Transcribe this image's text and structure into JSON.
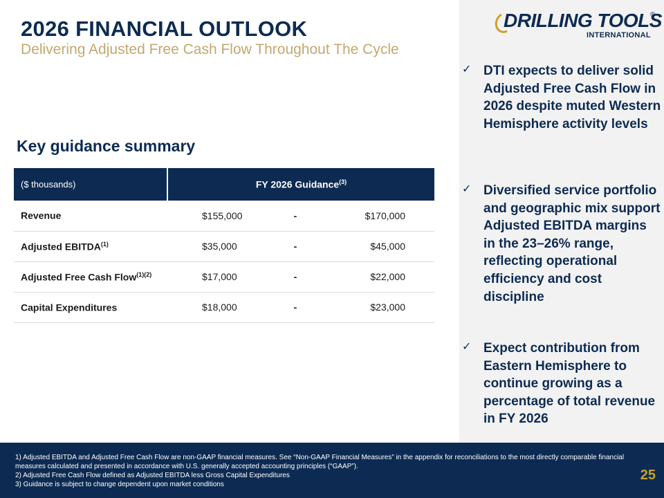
{
  "header": {
    "title": "2026 FINANCIAL OUTLOOK",
    "subtitle": "Delivering Adjusted Free Cash Flow Throughout The Cycle"
  },
  "logo": {
    "main": "DRILLING TOOLS",
    "registered": "®",
    "sub": "INTERNATIONAL"
  },
  "bullets": [
    "DTI expects to deliver solid Adjusted Free Cash Flow in 2026 despite muted Western Hemisphere activity levels",
    "Diversified service portfolio and geographic mix support Adjusted EBITDA margins in the 23–26% range, reflecting operational efficiency and cost discipline",
    "Expect contribution from Eastern Hemisphere to continue growing as a percentage of total revenue in FY 2026"
  ],
  "section_title": "Key guidance summary",
  "table": {
    "unit_header": "($ thousands)",
    "guidance_header": "FY 2026 Guidance",
    "guidance_header_note": "(3)",
    "rows": [
      {
        "label": "Revenue",
        "note": "",
        "low": "$155,000",
        "sep": "-",
        "high": "$170,000"
      },
      {
        "label": "Adjusted EBITDA",
        "note": "(1)",
        "low": "$35,000",
        "sep": "-",
        "high": "$45,000"
      },
      {
        "label": "Adjusted Free Cash Flow",
        "note": "(1)(2)",
        "low": "$17,000",
        "sep": "-",
        "high": "$22,000"
      },
      {
        "label": "Capital Expenditures",
        "note": "",
        "low": "$18,000",
        "sep": "-",
        "high": "$23,000"
      }
    ]
  },
  "footer": {
    "notes": [
      "1) Adjusted EBITDA and Adjusted Free Cash Flow are non-GAAP financial measures. See “Non-GAAP Financial Measures” in the appendix for reconciliations to the most directly comparable financial measures calculated and presented in accordance with U.S. generally accepted accounting principles (“GAAP”).",
      "2) Adjusted Free Cash Flow defined as Adjusted EBITDA less Gross Capital Expenditures",
      "3) Guidance is subject to change dependent upon market conditions"
    ],
    "page_number": "25"
  },
  "icons": {
    "bullet": "checkmark-icon"
  },
  "colors": {
    "navy": "#0d2b52",
    "gold": "#c3a86d",
    "panel": "#f2f2f2"
  }
}
